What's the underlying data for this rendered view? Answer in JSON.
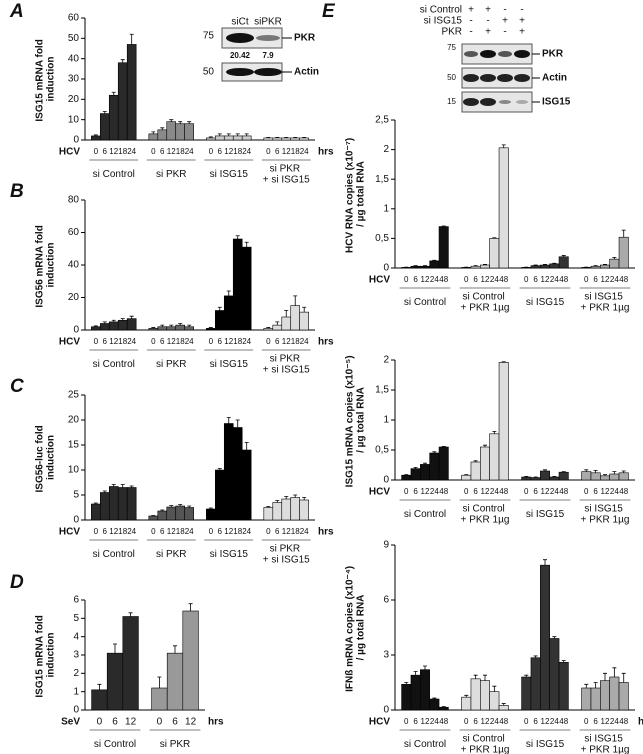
{
  "chart_data": [
    {
      "type": "grouped-bar",
      "panel": "A",
      "ylabel": "ISG15 mRNA fold induction",
      "x_prefix": "HCV",
      "x_suffix": "hrs",
      "categories": [
        "0",
        "6",
        "12",
        "18",
        "24"
      ],
      "ylim": [
        0,
        60
      ],
      "yticks": [
        0,
        10,
        20,
        30,
        40,
        50,
        60
      ],
      "series": [
        {
          "name": "si Control",
          "color": "#2a2a2a",
          "values": [
            2,
            13,
            22,
            38,
            47
          ],
          "errors": [
            0.5,
            1,
            1.5,
            1.5,
            5
          ]
        },
        {
          "name": "si PKR",
          "color": "#8a8a8a",
          "values": [
            3,
            5,
            9,
            8,
            8
          ],
          "errors": [
            1,
            1,
            1,
            1,
            1
          ]
        },
        {
          "name": "si ISG15",
          "color": "#cccccc",
          "values": [
            1,
            2,
            2,
            2,
            2
          ],
          "errors": [
            0.5,
            1,
            1,
            1,
            1
          ]
        },
        {
          "name": "si PKR + si ISG15",
          "color": "#eeeeee",
          "values": [
            1,
            1,
            1,
            1,
            1
          ],
          "errors": [
            0.3,
            0.3,
            0.3,
            0.3,
            0.3
          ]
        }
      ],
      "inset": {
        "lanes": [
          "siCt",
          "siPKR"
        ],
        "quant": [
          "20.42",
          "7.9"
        ],
        "markers": [
          "75",
          "50"
        ],
        "bands": [
          "PKR",
          "Actin"
        ]
      }
    },
    {
      "type": "grouped-bar",
      "panel": "B",
      "ylabel": "ISG56 mRNA fold induction",
      "x_prefix": "HCV",
      "x_suffix": "hrs",
      "categories": [
        "0",
        "6",
        "12",
        "18",
        "24"
      ],
      "ylim": [
        0,
        80
      ],
      "yticks": [
        0,
        20,
        40,
        60,
        80
      ],
      "series": [
        {
          "name": "si Control",
          "color": "#2a2a2a",
          "values": [
            2,
            4,
            5,
            6,
            7
          ],
          "errors": [
            0.5,
            1,
            1,
            1,
            1.5
          ]
        },
        {
          "name": "si PKR",
          "color": "#666666",
          "values": [
            1,
            2,
            2,
            3,
            2
          ],
          "errors": [
            0.5,
            1,
            1,
            1,
            1
          ]
        },
        {
          "name": "si ISG15",
          "color": "#000000",
          "values": [
            1,
            12,
            21,
            56,
            51
          ],
          "errors": [
            0.5,
            2,
            3,
            2,
            3
          ]
        },
        {
          "name": "si PKR + si ISG15",
          "color": "#dddddd",
          "values": [
            1,
            3,
            8,
            15,
            11
          ],
          "errors": [
            0.5,
            2,
            4,
            6,
            3
          ]
        }
      ]
    },
    {
      "type": "grouped-bar",
      "panel": "C",
      "ylabel": "ISG56-luc fold induction",
      "x_prefix": "HCV",
      "x_suffix": "hrs",
      "categories": [
        "0",
        "6",
        "12",
        "18",
        "24"
      ],
      "ylim": [
        0,
        25
      ],
      "yticks": [
        0,
        5,
        10,
        15,
        20,
        25
      ],
      "series": [
        {
          "name": "si Control",
          "color": "#2a2a2a",
          "values": [
            3.2,
            5.5,
            6.7,
            6.5,
            6.5
          ],
          "errors": [
            0.2,
            0.3,
            0.4,
            0.6,
            0.3
          ]
        },
        {
          "name": "si PKR",
          "color": "#555555",
          "values": [
            0.8,
            1.8,
            2.6,
            2.8,
            2.5
          ],
          "errors": [
            0.1,
            0.2,
            0.3,
            0.3,
            0.3
          ]
        },
        {
          "name": "si ISG15",
          "color": "#000000",
          "values": [
            2.2,
            10,
            19.3,
            18.5,
            14
          ],
          "errors": [
            0.2,
            0.3,
            1.2,
            1.5,
            1.5
          ]
        },
        {
          "name": "si PKR + si ISG15",
          "color": "#dddddd",
          "values": [
            2.5,
            3.5,
            4.2,
            4.5,
            4
          ],
          "errors": [
            0.2,
            0.4,
            0.5,
            0.5,
            0.5
          ]
        }
      ]
    },
    {
      "type": "grouped-bar",
      "panel": "D",
      "ylabel": "ISG15 mRNA fold induction",
      "x_prefix": "SeV",
      "x_suffix": "hrs",
      "categories": [
        "0",
        "6",
        "12"
      ],
      "ylim": [
        0,
        6
      ],
      "yticks": [
        0,
        1,
        2,
        3,
        4,
        5,
        6
      ],
      "series": [
        {
          "name": "si Control",
          "color": "#2a2a2a",
          "values": [
            1.1,
            3.1,
            5.1
          ],
          "errors": [
            0.3,
            0.5,
            0.2
          ]
        },
        {
          "name": "si PKR",
          "color": "#999999",
          "values": [
            1.2,
            3.1,
            5.4
          ],
          "errors": [
            0.6,
            0.4,
            0.4
          ]
        }
      ]
    },
    {
      "type": "grouped-bar",
      "panel": "E",
      "ylabel": "HCV RNA copies (x10⁻⁷) / µg total RNA",
      "x_prefix": "HCV",
      "categories": [
        "0",
        "6",
        "12",
        "24",
        "48"
      ],
      "ylim": [
        0,
        2.5
      ],
      "yticks": [
        0,
        {
          "value": 0.5,
          "label": "0,5"
        },
        1,
        {
          "value": 1.5,
          "label": "1,5"
        },
        2,
        {
          "value": 2.5,
          "label": "2,5"
        }
      ],
      "series": [
        {
          "name": "si Control",
          "color": "#111111",
          "values": [
            0.01,
            0.03,
            0.03,
            0.12,
            0.7
          ],
          "errors": [
            0.005,
            0.01,
            0.01,
            0.01,
            0.01
          ]
        },
        {
          "name": "si Control + PKR 1µg",
          "color": "#dddddd",
          "values": [
            0.01,
            0.03,
            0.05,
            0.5,
            2.03
          ],
          "errors": [
            0.005,
            0.01,
            0.01,
            0.01,
            0.05
          ]
        },
        {
          "name": "si ISG15",
          "color": "#333333",
          "values": [
            0.01,
            0.04,
            0.05,
            0.07,
            0.19
          ],
          "errors": [
            0.005,
            0.01,
            0.01,
            0.01,
            0.02
          ]
        },
        {
          "name": "si ISG15 + PKR 1µg",
          "color": "#aaaaaa",
          "values": [
            0.01,
            0.03,
            0.05,
            0.15,
            0.52
          ],
          "errors": [
            0.005,
            0.01,
            0.01,
            0.03,
            0.12
          ]
        }
      ]
    },
    {
      "type": "grouped-bar",
      "ylabel": "ISG15 mRNA copies (x10⁻⁵) / µg total RNA",
      "x_prefix": "HCV",
      "categories": [
        "0",
        "6",
        "12",
        "24",
        "48"
      ],
      "ylim": [
        0,
        2
      ],
      "yticks": [
        0,
        {
          "value": 0.5,
          "label": "0,5"
        },
        1,
        {
          "value": 1.5,
          "label": "1,5"
        },
        2
      ],
      "series": [
        {
          "name": "si Control",
          "color": "#111111",
          "values": [
            0.08,
            0.19,
            0.26,
            0.45,
            0.55
          ],
          "errors": [
            0.01,
            0.02,
            0.02,
            0.02,
            0.01
          ]
        },
        {
          "name": "si Control + PKR 1µg",
          "color": "#dddddd",
          "values": [
            0.08,
            0.3,
            0.55,
            0.77,
            1.96
          ],
          "errors": [
            0.01,
            0.02,
            0.03,
            0.04,
            0.01
          ]
        },
        {
          "name": "si ISG15",
          "color": "#333333",
          "values": [
            0.05,
            0.04,
            0.15,
            0.05,
            0.13
          ],
          "errors": [
            0.01,
            0.01,
            0.02,
            0.01,
            0.01
          ]
        },
        {
          "name": "si ISG15 + PKR 1µg",
          "color": "#aaaaaa",
          "values": [
            0.14,
            0.12,
            0.07,
            0.1,
            0.12
          ],
          "errors": [
            0.03,
            0.04,
            0.02,
            0.04,
            0.03
          ]
        }
      ]
    },
    {
      "type": "grouped-bar",
      "ylabel": "IFNß mRNA copies (x10⁻⁴) / µg total RNA",
      "x_prefix": "HCV",
      "x_suffix": "hrs",
      "categories": [
        "0",
        "6",
        "12",
        "24",
        "48"
      ],
      "ylim": [
        0,
        9
      ],
      "yticks": [
        0,
        3,
        6,
        9
      ],
      "series": [
        {
          "name": "si Control",
          "color": "#111111",
          "values": [
            1.4,
            1.9,
            2.2,
            0.6,
            0.15
          ],
          "errors": [
            0.1,
            0.2,
            0.2,
            0.05,
            0.03
          ]
        },
        {
          "name": "si Control + PKR 1µg",
          "color": "#dddddd",
          "values": [
            0.7,
            1.7,
            1.6,
            1.0,
            0.25
          ],
          "errors": [
            0.1,
            0.2,
            0.3,
            0.3,
            0.1
          ]
        },
        {
          "name": "si ISG15",
          "color": "#333333",
          "values": [
            1.8,
            2.85,
            7.9,
            3.9,
            2.6
          ],
          "errors": [
            0.1,
            0.1,
            0.3,
            0.1,
            0.1
          ]
        },
        {
          "name": "si ISG15 + PKR 1µg",
          "color": "#aaaaaa",
          "values": [
            1.2,
            1.2,
            1.6,
            1.8,
            1.5
          ],
          "errors": [
            0.2,
            0.3,
            0.4,
            0.5,
            0.5
          ]
        }
      ]
    }
  ],
  "panel_e_blot": {
    "rows": [
      {
        "label": "si Control",
        "signs": [
          "+",
          "+",
          "-",
          "-"
        ]
      },
      {
        "label": "si ISG15",
        "signs": [
          "-",
          "-",
          "+",
          "+"
        ]
      },
      {
        "label": "PKR",
        "signs": [
          "-",
          "+",
          "-",
          "+"
        ]
      }
    ],
    "markers": [
      "75",
      "50",
      "15"
    ],
    "bands": [
      "PKR",
      "Actin",
      "ISG15"
    ]
  }
}
